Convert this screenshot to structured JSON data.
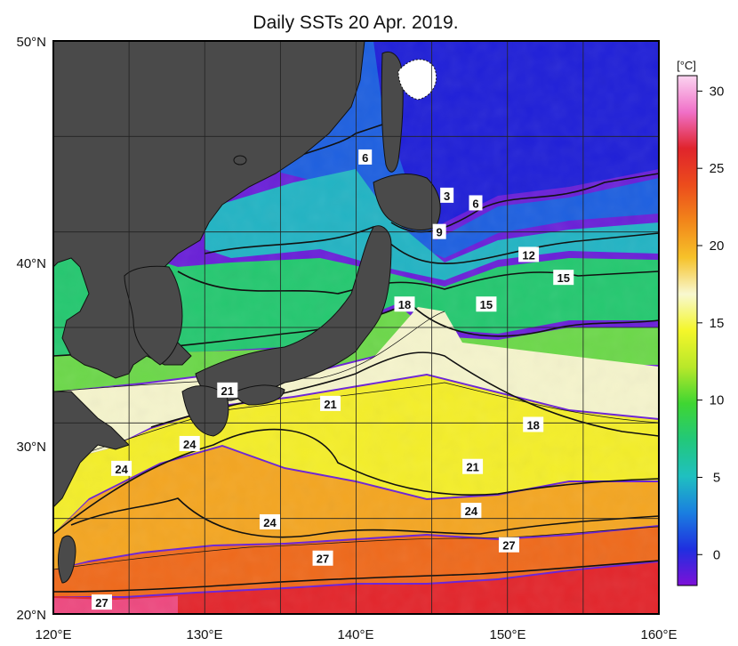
{
  "title": "Daily SSTs 20 Apr. 2019.",
  "map": {
    "lon_range": [
      120,
      160
    ],
    "lat_range": [
      20,
      50
    ],
    "lon_ticks": [
      "120°E",
      "130°E",
      "140°E",
      "150°E",
      "160°E"
    ],
    "lat_ticks": [
      "50°N",
      "40°N",
      "30°N",
      "20°N"
    ],
    "land_color": "#4a4a4a",
    "grid_lines": true
  },
  "colorbar": {
    "unit": "[°C]",
    "ticks": [
      "30",
      "25",
      "20",
      "15",
      "10",
      "5",
      "0"
    ],
    "range": [
      -2,
      31
    ],
    "colors": [
      "#7d10d8",
      "#1f2fe0",
      "#1a7fe0",
      "#1fc0c0",
      "#22c87a",
      "#3fd632",
      "#b9e82a",
      "#f4f62a",
      "#f8f8d0",
      "#f6c22a",
      "#f2861a",
      "#ec4c1c",
      "#e0242c",
      "#f070c8",
      "#fbd4f0"
    ]
  },
  "contour_labels": [
    {
      "text": "6",
      "lon": 140.6,
      "lat": 43.9
    },
    {
      "text": "3",
      "lon": 146.0,
      "lat": 41.9
    },
    {
      "text": "6",
      "lon": 147.9,
      "lat": 41.5
    },
    {
      "text": "9",
      "lon": 145.5,
      "lat": 40.0
    },
    {
      "text": "12",
      "lon": 151.4,
      "lat": 38.8
    },
    {
      "text": "15",
      "lon": 153.7,
      "lat": 37.6
    },
    {
      "text": "15",
      "lon": 148.6,
      "lat": 36.2
    },
    {
      "text": "18",
      "lon": 143.2,
      "lat": 36.2
    },
    {
      "text": "21",
      "lon": 138.3,
      "lat": 31.0
    },
    {
      "text": "21",
      "lon": 131.5,
      "lat": 31.7
    },
    {
      "text": "18",
      "lon": 151.7,
      "lat": 29.9
    },
    {
      "text": "24",
      "lon": 129.0,
      "lat": 28.9
    },
    {
      "text": "24",
      "lon": 124.5,
      "lat": 27.6
    },
    {
      "text": "21",
      "lon": 147.7,
      "lat": 27.7
    },
    {
      "text": "24",
      "lon": 147.6,
      "lat": 25.4
    },
    {
      "text": "24",
      "lon": 134.3,
      "lat": 24.8
    },
    {
      "text": "27",
      "lon": 150.1,
      "lat": 23.6
    },
    {
      "text": "27",
      "lon": 137.8,
      "lat": 22.9
    },
    {
      "text": "27",
      "lon": 123.2,
      "lat": 20.6
    }
  ]
}
